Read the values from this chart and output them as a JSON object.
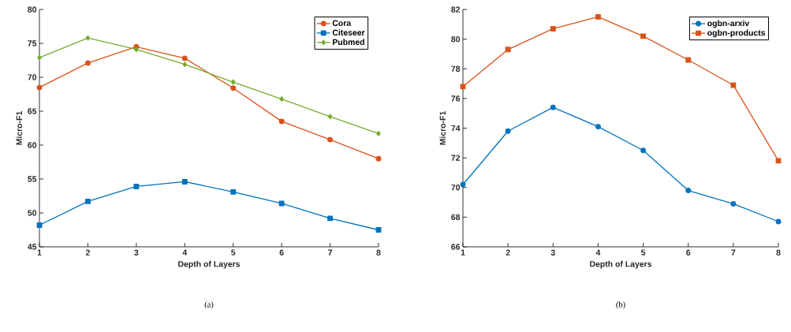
{
  "chart_data": [
    {
      "type": "line",
      "xlabel": "Depth of Layers",
      "ylabel": "Micro-F1",
      "x": [
        1,
        2,
        3,
        4,
        5,
        6,
        7,
        8
      ],
      "xlim": [
        1,
        8
      ],
      "xticks": [
        1,
        2,
        3,
        4,
        5,
        6,
        7,
        8
      ],
      "ylim": [
        45,
        80
      ],
      "yticks": [
        45,
        50,
        55,
        60,
        65,
        70,
        75,
        80
      ],
      "legend": "top right",
      "grid": false,
      "annotations": [
        "(a)"
      ],
      "series": [
        {
          "name": "Cora",
          "color": "#d95319",
          "marker": "circle",
          "values": [
            68.5,
            72.1,
            74.5,
            72.8,
            68.4,
            63.5,
            60.8,
            58.0
          ]
        },
        {
          "name": "Citeseer",
          "color": "#0072bd",
          "marker": "square",
          "values": [
            48.2,
            51.7,
            53.9,
            54.6,
            53.1,
            51.4,
            49.2,
            47.5
          ]
        },
        {
          "name": "Pubmed",
          "color": "#77ac30",
          "marker": "diamond",
          "values": [
            72.9,
            75.8,
            74.1,
            71.9,
            69.3,
            66.8,
            64.2,
            61.7
          ]
        }
      ]
    },
    {
      "type": "line",
      "xlabel": "Depth of Layers",
      "ylabel": "Micro-F1",
      "x": [
        1,
        2,
        3,
        4,
        5,
        6,
        7,
        8
      ],
      "xlim": [
        1,
        8
      ],
      "xticks": [
        1,
        2,
        3,
        4,
        5,
        6,
        7,
        8
      ],
      "ylim": [
        66,
        82
      ],
      "yticks": [
        66,
        68,
        70,
        72,
        74,
        76,
        78,
        80,
        82
      ],
      "legend": "top right",
      "grid": false,
      "annotations": [
        "(b)"
      ],
      "series": [
        {
          "name": "ogbn-arxiv",
          "color": "#0072bd",
          "marker": "circle",
          "values": [
            70.2,
            73.8,
            75.4,
            74.1,
            72.5,
            69.8,
            68.9,
            67.7
          ]
        },
        {
          "name": "ogbn-products",
          "color": "#d95319",
          "marker": "square",
          "values": [
            76.8,
            79.3,
            80.7,
            81.5,
            80.2,
            78.6,
            76.9,
            71.8
          ]
        }
      ]
    }
  ]
}
